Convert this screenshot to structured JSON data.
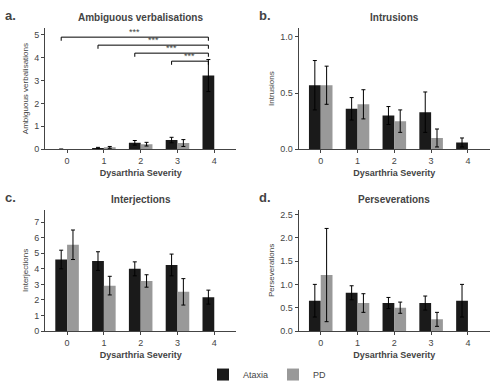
{
  "chart_data": [
    {
      "type": "bar",
      "title": "Ambiguous verbalisations",
      "panel_label": "a.",
      "xlabel": "Dysarthria Severity",
      "ylabel": "Ambiguous verbalisations",
      "categories": [
        "0",
        "1",
        "2",
        "3",
        "4"
      ],
      "series": [
        {
          "name": "Ataxia",
          "color": "#1a1a1a",
          "values": [
            0.0,
            0.05,
            0.28,
            0.4,
            3.22
          ],
          "errors": [
            0.0,
            0.03,
            0.1,
            0.12,
            0.7
          ]
        },
        {
          "name": "PD",
          "color": "#999999",
          "values": [
            null,
            0.08,
            0.22,
            0.27,
            null
          ],
          "errors": [
            null,
            0.04,
            0.08,
            0.15,
            null
          ]
        }
      ],
      "ylim": [
        0,
        5.3
      ],
      "yticks": [
        0,
        1,
        2,
        3,
        4,
        5
      ],
      "annotations": [
        {
          "text": "***",
          "x_from": "0",
          "x_to": "4",
          "y": 4.9
        },
        {
          "text": "***",
          "x_from": "1",
          "x_to": "4",
          "y": 4.55
        },
        {
          "text": "***",
          "x_from": "2",
          "x_to": "4",
          "y": 4.2
        },
        {
          "text": "***",
          "x_from": "3",
          "x_to": "4",
          "y": 3.85
        }
      ],
      "grid": false,
      "legend": "bottom"
    },
    {
      "type": "bar",
      "title": "Intrusions",
      "panel_label": "b.",
      "xlabel": "Dysarthria Severity",
      "ylabel": "Intrusions",
      "categories": [
        "0",
        "1",
        "2",
        "3",
        "4"
      ],
      "series": [
        {
          "name": "Ataxia",
          "color": "#1a1a1a",
          "values": [
            0.57,
            0.36,
            0.3,
            0.33,
            0.06
          ],
          "errors": [
            0.22,
            0.1,
            0.08,
            0.18,
            0.04
          ]
        },
        {
          "name": "PD",
          "color": "#999999",
          "values": [
            0.57,
            0.4,
            0.25,
            0.1,
            null
          ],
          "errors": [
            0.17,
            0.13,
            0.1,
            0.08,
            null
          ]
        }
      ],
      "ylim": [
        0,
        1.08
      ],
      "yticks": [
        {
          "value": 0,
          "label": "0.0"
        },
        0.5,
        {
          "value": 1,
          "label": "1.0"
        }
      ],
      "grid": false,
      "legend": "bottom"
    },
    {
      "type": "bar",
      "title": "Interjections",
      "panel_label": "c.",
      "xlabel": "Dysarthria Severity",
      "ylabel": "Interjections",
      "categories": [
        "0",
        "1",
        "2",
        "3",
        "4"
      ],
      "series": [
        {
          "name": "Ataxia",
          "color": "#1a1a1a",
          "values": [
            4.6,
            4.5,
            4.0,
            4.25,
            2.18
          ],
          "errors": [
            0.6,
            0.6,
            0.45,
            0.7,
            0.45
          ]
        },
        {
          "name": "PD",
          "color": "#999999",
          "values": [
            5.55,
            2.92,
            3.22,
            2.52,
            null
          ],
          "errors": [
            0.95,
            0.6,
            0.4,
            0.85,
            null
          ]
        }
      ],
      "ylim": [
        0,
        7.8
      ],
      "yticks": [
        0,
        1,
        2,
        3,
        4,
        5,
        6,
        7
      ],
      "grid": false,
      "legend": "bottom"
    },
    {
      "type": "bar",
      "title": "Perseverations",
      "panel_label": "d.",
      "xlabel": "Dysarthria Severity",
      "ylabel": "Perseverations",
      "categories": [
        "0",
        "1",
        "2",
        "3",
        "4"
      ],
      "series": [
        {
          "name": "Ataxia",
          "color": "#1a1a1a",
          "values": [
            0.65,
            0.82,
            0.6,
            0.6,
            0.65
          ],
          "errors": [
            0.35,
            0.15,
            0.12,
            0.15,
            0.35
          ]
        },
        {
          "name": "PD",
          "color": "#999999",
          "values": [
            1.2,
            0.6,
            0.5,
            0.25,
            null
          ],
          "errors": [
            1.0,
            0.2,
            0.12,
            0.15,
            null
          ]
        }
      ],
      "ylim": [
        0,
        2.6
      ],
      "yticks": [
        {
          "value": 0,
          "label": "0.0"
        },
        0.5,
        {
          "value": 1,
          "label": "1.0"
        },
        1.5,
        {
          "value": 2,
          "label": "2.0"
        },
        2.5
      ],
      "grid": false,
      "legend": "bottom"
    }
  ]
}
